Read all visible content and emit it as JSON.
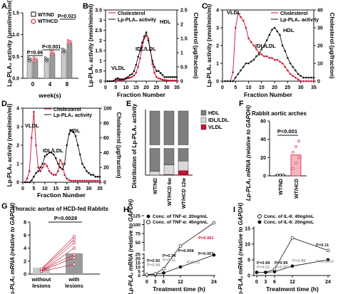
{
  "panels": {
    "A": {
      "label": "A",
      "ylabel": "Lp-PLA₂ activity (μmol/min/ml)",
      "xlabel": "week(s)",
      "legend": [
        "WT/ND",
        "WT/HCD"
      ],
      "pvalues": [
        "P=0.66",
        "P<0.001",
        "P=0.021"
      ]
    },
    "B": {
      "label": "B",
      "ylabel_left": "Lp-PLA₂ activity (nmol/min/ml)",
      "ylabel_right": "Cholesterol (μg/fraction)",
      "xlabel": "Fraction Number",
      "legend": [
        "Cholesterol",
        "Lp-PLA₂ activity"
      ],
      "annotations": [
        "HDL",
        "IDL/LDL",
        "VLDL"
      ]
    },
    "C": {
      "label": "C",
      "ylabel_left": "Lp-PLA₂ activity (nmol/min/ml)",
      "ylabel_right": "Cholesterol (μg/fraction)",
      "xlabel": "Fraction Number",
      "legend": [
        "Cholesterol",
        "Lp-PLA₂ activity"
      ],
      "annotations": [
        "VLDL",
        "IDL/LDL",
        "HDL"
      ]
    },
    "D": {
      "label": "D",
      "ylabel_left": "Lp-PLA₂ activity (nmol/min/ml)",
      "ylabel_right": "Cholesterol (μg/fraction)",
      "xlabel": "Fraction Number",
      "legend": [
        "Cholesterol",
        "Lp-PLA₂ activity"
      ],
      "annotations": [
        "VLDL",
        "IDL/LDL",
        "HDL"
      ]
    },
    "E": {
      "label": "E",
      "ylabel": "Distribution of Lp-PLA₂ activity",
      "legend": [
        "HDL",
        "IDL/LDL",
        "VLDL"
      ],
      "categories": [
        "WT/ND",
        "WT/HCD 6w",
        "WT/HCD 12w"
      ]
    },
    "F": {
      "label": "F",
      "title": "Rabbit aortic arches",
      "ylabel": "Lp-PLA₂ mRNA (relative to GAPDH)",
      "pvalue": "P<0.001",
      "categories": [
        "WT/ND",
        "WT/HCD"
      ]
    },
    "G": {
      "label": "G",
      "title": "Thoracic aortas of HCD-fed Rabbits",
      "ylabel": "Lp-PLA₂ mRNA (relative to GAPDH)",
      "pvalue": "P=0.0028",
      "categories": [
        "without lesions",
        "with lesions"
      ]
    },
    "H": {
      "label": "H",
      "ylabel": "Lp-PLA₂ mRNA (relative to GAPDH)",
      "xlabel": "Treatment time (h)",
      "legend": [
        "Conc. of TNF-α: 20ng/mL",
        "Conc. of TNF-α: 40ng/mL"
      ],
      "pvalues": [
        "P=0.92",
        "P=0.99",
        "P=0.34",
        "P=0.11",
        "P=0.008",
        "P=0.01",
        "P<0.001",
        "P<0.001"
      ]
    },
    "I": {
      "label": "I",
      "ylabel": "Lp-PLA₂ mRNA (relative to GAPDH)",
      "xlabel": "Treatment time (h)",
      "legend": [
        "Conc. of IL-6: 40ng/mL",
        "Conc. of IL-6: 20ng/mL"
      ],
      "pvalues": [
        "P=0.99",
        "P=0.31",
        "P=0.99",
        "P=0.99",
        "P=0.89",
        "P=0.11",
        "P=0.0013"
      ]
    }
  },
  "colors": {
    "red": "#c8102e",
    "black": "#111111",
    "gray": "#9a9a9a",
    "lightgray": "#d9d9d9",
    "darkgray": "#7f7f7f"
  },
  "chart_data": [
    {
      "type": "bar",
      "panel": "A",
      "categories": [
        "0",
        "4",
        "8"
      ],
      "series": [
        {
          "name": "WT/ND",
          "values": [
            0.4,
            0.4,
            0.6
          ]
        },
        {
          "name": "WT/HCD",
          "values": [
            0.4,
            0.55,
            0.8
          ]
        }
      ],
      "ylim": [
        0,
        1.5
      ],
      "yticks": [
        0,
        0.5,
        1.0,
        1.5
      ]
    },
    {
      "type": "line",
      "panel": "B",
      "x": [
        1,
        2,
        3,
        4,
        5,
        6,
        7,
        8,
        9,
        10,
        11,
        12,
        13,
        14,
        15,
        16,
        17,
        18,
        19,
        20,
        21,
        22,
        23,
        24,
        25,
        26,
        27,
        28,
        29,
        30,
        31,
        32,
        33,
        34,
        35
      ],
      "series": [
        {
          "name": "Cholesterol",
          "values": [
            0,
            0,
            0,
            0.02,
            0.05,
            0.05,
            0.04,
            0.04,
            0.05,
            0.08,
            0.1,
            0.12,
            0.15,
            0.2,
            0.3,
            0.5,
            0.8,
            1.2,
            1.5,
            1.6,
            1.5,
            1.1,
            0.6,
            0.3,
            0.15,
            0.1,
            0.08,
            0.05,
            0.04,
            0.03,
            0.02,
            0.02,
            0.02,
            0.02,
            0.02
          ]
        },
        {
          "name": "Lp-PLA₂ activity",
          "values": [
            0,
            0,
            0,
            0,
            0.1,
            0.15,
            0.1,
            0.1,
            0.1,
            0.15,
            0.2,
            0.3,
            0.35,
            0.5,
            0.8,
            1.2,
            1.5,
            1.9,
            2.2,
            2.4,
            2.0,
            1.5,
            1.0,
            0.7,
            0.5,
            0.5,
            0.4,
            0.3,
            0.2,
            0.2,
            0.2,
            0.2,
            0.2,
            0.2,
            0.2
          ]
        }
      ],
      "ylim_left": [
        0,
        3.5
      ],
      "ylim_right": [
        0,
        2.5
      ],
      "yticks_left": [
        0,
        0.5,
        1,
        1.5,
        2,
        2.5,
        3,
        3.5
      ],
      "yticks_right": [
        0,
        0.5,
        1,
        1.5,
        2,
        2.5
      ],
      "xticks": [
        0,
        5,
        10,
        15,
        20,
        25,
        30,
        35
      ]
    },
    {
      "type": "line",
      "panel": "C",
      "x": [
        1,
        2,
        3,
        4,
        5,
        6,
        7,
        8,
        9,
        10,
        11,
        12,
        13,
        14,
        15,
        16,
        17,
        18,
        19,
        20,
        21,
        22,
        23,
        24,
        25,
        26,
        27,
        28,
        29,
        30,
        31,
        32,
        33,
        34,
        35
      ],
      "series": [
        {
          "name": "Cholesterol",
          "values": [
            0,
            0,
            0,
            5,
            30,
            38,
            36,
            34,
            30,
            24,
            22,
            20,
            18,
            16,
            15,
            14,
            14,
            13,
            13,
            12,
            12,
            11,
            10,
            8,
            6,
            4,
            3,
            2,
            1,
            0,
            0,
            0,
            0,
            0,
            0
          ]
        },
        {
          "name": "Lp-PLA₂ activity",
          "values": [
            0,
            0,
            0,
            0,
            0.2,
            0.4,
            0.6,
            0.8,
            1.0,
            1.0,
            1.1,
            1.2,
            1.4,
            1.5,
            1.8,
            2.0,
            2.3,
            2.6,
            2.9,
            3.0,
            2.8,
            2.6,
            2.0,
            1.7,
            1.3,
            1.0,
            0.8,
            0.6,
            0.4,
            0.3,
            0.2,
            0.2,
            0.2,
            0.2,
            0.2
          ]
        }
      ],
      "ylim_left": [
        0,
        4
      ],
      "ylim_right": [
        0,
        40
      ],
      "yticks_left": [
        0,
        1,
        2,
        3,
        4
      ],
      "yticks_right": [
        0,
        10,
        20,
        30,
        40
      ],
      "xticks": [
        0,
        5,
        10,
        15,
        20,
        25,
        30,
        35
      ]
    },
    {
      "type": "line",
      "panel": "D",
      "x": [
        1,
        2,
        3,
        4,
        5,
        6,
        7,
        8,
        9,
        10,
        11,
        12,
        13,
        14,
        15,
        16,
        17,
        18,
        19,
        20,
        21,
        22,
        23,
        24,
        25,
        26,
        27,
        28,
        29,
        30,
        31,
        32,
        33,
        34,
        35
      ],
      "series": [
        {
          "name": "Cholesterol",
          "values": [
            0,
            5,
            15,
            60,
            95,
            50,
            20,
            15,
            20,
            25,
            22,
            15,
            12,
            10,
            10,
            15,
            30,
            25,
            10,
            5,
            3,
            2,
            2,
            2,
            2,
            2,
            2,
            2,
            2,
            2,
            2,
            2,
            2,
            2,
            2
          ]
        },
        {
          "name": "Lp-PLA₂ activity",
          "values": [
            0,
            0,
            0,
            0.1,
            0.3,
            0.5,
            0.6,
            0.8,
            1.0,
            1.4,
            1.5,
            1.6,
            1.6,
            1.5,
            1.3,
            1.0,
            0.8,
            0.7,
            1.0,
            2.0,
            2.6,
            2.8,
            2.7,
            2.5,
            2.0,
            1.5,
            1.0,
            0.8,
            0.6,
            0.5,
            0.4,
            0.4,
            0.3,
            0.3,
            0.3
          ]
        }
      ],
      "ylim_left": [
        0,
        4
      ],
      "ylim_right": [
        0,
        100
      ],
      "yticks_left": [
        0,
        1,
        2,
        3,
        4
      ],
      "yticks_right": [
        0,
        20,
        40,
        60,
        80,
        100
      ],
      "xticks": [
        0,
        5,
        10,
        15,
        20,
        25,
        30,
        35
      ]
    },
    {
      "type": "bar",
      "panel": "E",
      "stacked": true,
      "categories": [
        "WT/ND",
        "WT/HCD 6w",
        "WT/HCD 12w"
      ],
      "series": [
        {
          "name": "VLDL",
          "values": [
            0,
            1,
            7
          ]
        },
        {
          "name": "IDL/LDL",
          "values": [
            6,
            15,
            15
          ]
        },
        {
          "name": "HDL",
          "values": [
            94,
            84,
            78
          ]
        }
      ],
      "ylabel": "Distribution of Lp-PLA₂ activity"
    },
    {
      "type": "bar",
      "panel": "F",
      "categories": [
        "WT/ND",
        "WT/HCD"
      ],
      "values": [
        1.0,
        23.0
      ],
      "ylim": [
        0,
        60
      ],
      "yticks": [
        0,
        20,
        40,
        60
      ]
    },
    {
      "type": "bar",
      "panel": "G",
      "categories": [
        "without lesions",
        "with lesions"
      ],
      "values": [
        1.0,
        3.2
      ],
      "ylim": [
        0,
        8
      ],
      "yticks": [
        0,
        2,
        4,
        6,
        8
      ]
    },
    {
      "type": "line",
      "panel": "H",
      "x": [
        0,
        3,
        6,
        12,
        24
      ],
      "series": [
        {
          "name": "Conc. of TNF-α: 20ng/mL",
          "values": [
            1,
            1.5,
            3,
            10,
            24
          ]
        },
        {
          "name": "Conc. of TNF-α: 40ng/mL",
          "values": [
            1,
            2,
            8,
            40,
            105
          ]
        }
      ],
      "yticks": [
        0,
        5,
        10,
        15,
        20,
        25,
        50,
        75,
        100,
        125
      ],
      "xticks": [
        0,
        3,
        6,
        12,
        24
      ]
    },
    {
      "type": "line",
      "panel": "I",
      "x": [
        0,
        3,
        6,
        12,
        24
      ],
      "series": [
        {
          "name": "Conc. of IL-6: 40ng/mL",
          "values": [
            1,
            1,
            2,
            12,
            8
          ]
        },
        {
          "name": "Conc. of IL-6: 20ng/mL",
          "values": [
            1,
            1,
            1.2,
            3,
            5
          ]
        }
      ],
      "ylim": [
        0,
        15
      ],
      "yticks": [
        0,
        5,
        10,
        15
      ],
      "xticks": [
        0,
        3,
        6,
        12,
        24
      ]
    }
  ]
}
